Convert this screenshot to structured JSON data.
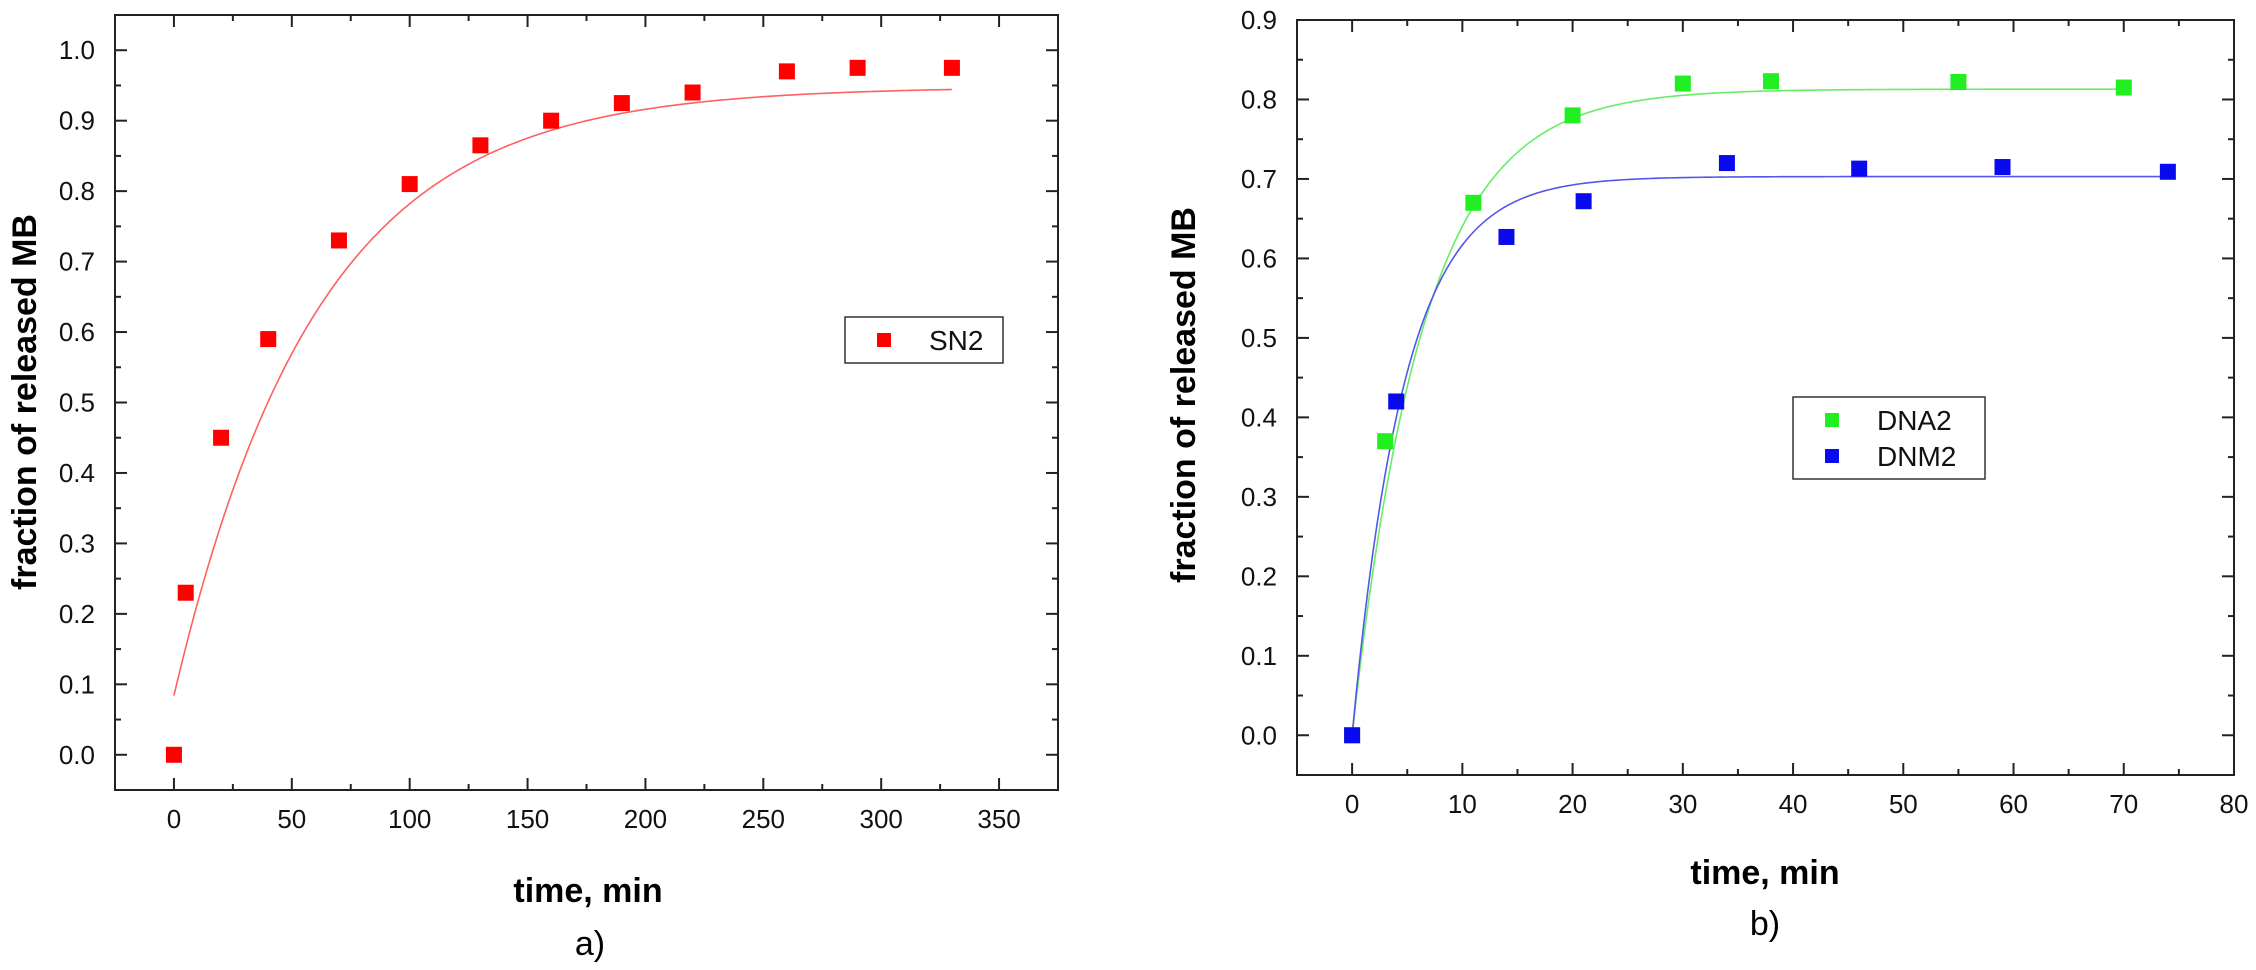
{
  "chart_data": [
    {
      "type": "scatter",
      "panel_label": "a)",
      "xlabel": "time, min",
      "ylabel": "fraction of released MB",
      "xlim": [
        -25,
        375
      ],
      "ylim": [
        -0.05,
        1.05
      ],
      "xticks": [
        0,
        50,
        100,
        150,
        200,
        250,
        300,
        350
      ],
      "yticks": [
        0.0,
        0.1,
        0.2,
        0.3,
        0.4,
        0.5,
        0.6,
        0.7,
        0.8,
        0.9,
        1.0
      ],
      "xtick_labels": [
        "0",
        "50",
        "100",
        "150",
        "200",
        "250",
        "300",
        "350"
      ],
      "ytick_labels": [
        "0.0",
        "0.1",
        "0.2",
        "0.3",
        "0.4",
        "0.5",
        "0.6",
        "0.7",
        "0.8",
        "0.9",
        "1.0"
      ],
      "legend_position": "right-upper",
      "series": [
        {
          "name": "SN2",
          "color": "#ff0000",
          "x": [
            0,
            5,
            20,
            40,
            70,
            100,
            130,
            160,
            190,
            220,
            260,
            290,
            330
          ],
          "y": [
            0.0,
            0.23,
            0.45,
            0.59,
            0.73,
            0.81,
            0.865,
            0.9,
            0.925,
            0.94,
            0.97,
            0.975,
            0.975
          ],
          "fit": {
            "color": "#ff6060",
            "a": 0.948,
            "b": 0.864,
            "k": 0.0165,
            "x_range": [
              0,
              330
            ]
          }
        }
      ]
    },
    {
      "type": "scatter",
      "panel_label": "b)",
      "xlabel": "time, min",
      "ylabel": "fraction of released MB",
      "xlim": [
        -5,
        80
      ],
      "ylim": [
        -0.05,
        0.9
      ],
      "xticks": [
        0,
        10,
        20,
        30,
        40,
        50,
        60,
        70,
        80
      ],
      "yticks": [
        0.0,
        0.1,
        0.2,
        0.3,
        0.4,
        0.5,
        0.6,
        0.7,
        0.8,
        0.9
      ],
      "xtick_labels": [
        "0",
        "10",
        "20",
        "30",
        "40",
        "50",
        "60",
        "70",
        "80"
      ],
      "ytick_labels": [
        "0.0",
        "0.1",
        "0.2",
        "0.3",
        "0.4",
        "0.5",
        "0.6",
        "0.7",
        "0.8",
        "0.9"
      ],
      "legend_position": "center-right",
      "series": [
        {
          "name": "DNA2",
          "color": "#22ee22",
          "x": [
            0,
            3,
            11,
            20,
            30,
            38,
            55,
            70
          ],
          "y": [
            0.0,
            0.37,
            0.67,
            0.78,
            0.82,
            0.823,
            0.822,
            0.815
          ],
          "fit": {
            "color": "#66ee66",
            "a": 0.813,
            "b": 0.813,
            "k": 0.155,
            "x_range": [
              0,
              70
            ]
          }
        },
        {
          "name": "DNM2",
          "color": "#0a0aee",
          "x": [
            0,
            4,
            14,
            21,
            34,
            46,
            59,
            74
          ],
          "y": [
            0.0,
            0.42,
            0.627,
            0.672,
            0.72,
            0.713,
            0.715,
            0.709
          ],
          "fit": {
            "color": "#5555ee",
            "a": 0.703,
            "b": 0.703,
            "k": 0.21,
            "x_range": [
              0,
              74
            ]
          }
        }
      ]
    }
  ]
}
